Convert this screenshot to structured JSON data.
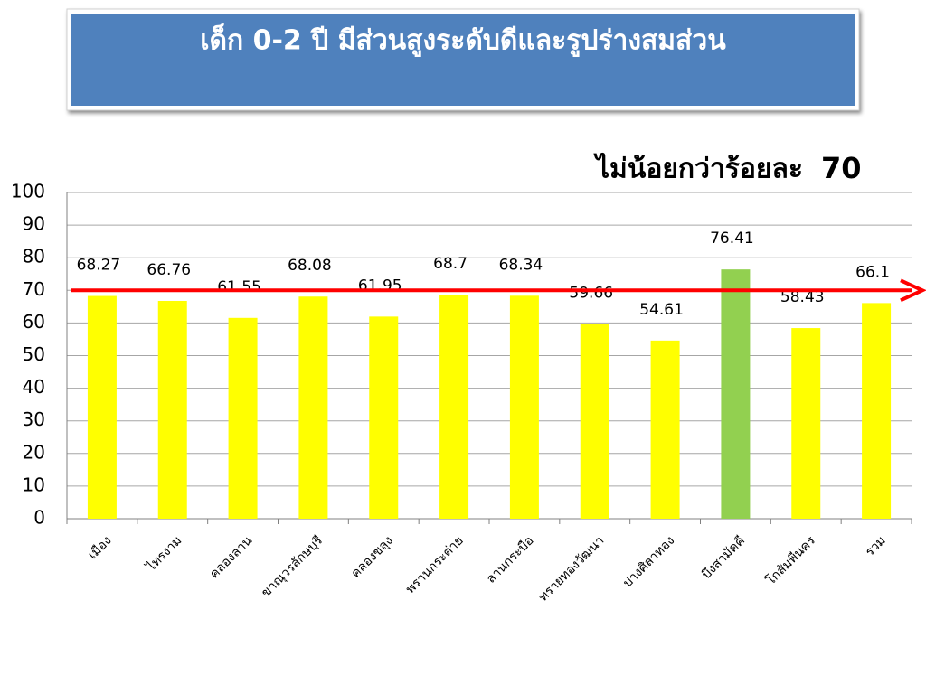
{
  "chart_data": {
    "type": "bar",
    "title": "เด็ก 0-2 ปี มีส่วนสูงระดับดีและรูปร่างสมส่วน",
    "annotation": "ไม่น้อยกว่าร้อยละ",
    "target": 70,
    "target_color": "#ff0000",
    "categories": [
      "เมือง",
      "ไทรงาม",
      "คลองลาน",
      "ขาณุวรลักษบุรี",
      "คลองขลุง",
      "พรานกระต่าย",
      "ลานกระบือ",
      "ทรายทองวัฒนา",
      "ปางศิลาทอง",
      "บึงสามัคคี",
      "โกสัมพีนคร",
      "รวม"
    ],
    "values": [
      68.27,
      66.76,
      61.55,
      68.08,
      61.95,
      68.7,
      68.34,
      59.66,
      54.61,
      76.41,
      58.43,
      66.1
    ],
    "colors": [
      "#ffff00",
      "#ffff00",
      "#ffff00",
      "#ffff00",
      "#ffff00",
      "#ffff00",
      "#ffff00",
      "#ffff00",
      "#ffff00",
      "#92d050",
      "#ffff00",
      "#ffff00"
    ],
    "ylim": [
      0,
      100
    ],
    "yticks": [
      0,
      10,
      20,
      30,
      40,
      50,
      60,
      70,
      80,
      90,
      100
    ],
    "grid": true
  }
}
